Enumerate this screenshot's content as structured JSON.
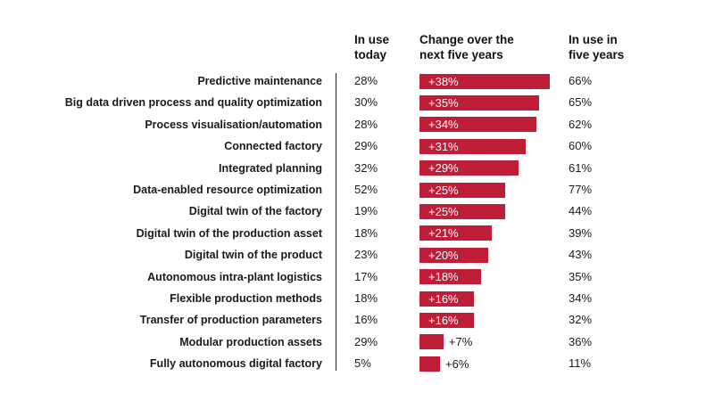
{
  "headers": {
    "today": "In use\ntoday",
    "change": "Change over the\nnext five years",
    "five_years": "In use in\nfive years"
  },
  "chart_data": {
    "type": "bar",
    "orientation": "horizontal",
    "bar_color": "#be1e37",
    "xlim": [
      0,
      38
    ],
    "rows": [
      {
        "label": "Predictive maintenance",
        "today": "28%",
        "change": 38,
        "change_label": "+38%",
        "five_years": "66%"
      },
      {
        "label": "Big data driven process and quality optimization",
        "today": "30%",
        "change": 35,
        "change_label": "+35%",
        "five_years": "65%"
      },
      {
        "label": "Process visualisation/automation",
        "today": "28%",
        "change": 34,
        "change_label": "+34%",
        "five_years": "62%"
      },
      {
        "label": "Connected factory",
        "today": "29%",
        "change": 31,
        "change_label": "+31%",
        "five_years": "60%"
      },
      {
        "label": "Integrated planning",
        "today": "32%",
        "change": 29,
        "change_label": "+29%",
        "five_years": "61%"
      },
      {
        "label": "Data-enabled resource optimization",
        "today": "52%",
        "change": 25,
        "change_label": "+25%",
        "five_years": "77%"
      },
      {
        "label": "Digital twin of the factory",
        "today": "19%",
        "change": 25,
        "change_label": "+25%",
        "five_years": "44%"
      },
      {
        "label": "Digital twin of the production asset",
        "today": "18%",
        "change": 21,
        "change_label": "+21%",
        "five_years": "39%"
      },
      {
        "label": "Digital twin of the product",
        "today": "23%",
        "change": 20,
        "change_label": "+20%",
        "five_years": "43%"
      },
      {
        "label": "Autonomous intra-plant logistics",
        "today": "17%",
        "change": 18,
        "change_label": "+18%",
        "five_years": "35%"
      },
      {
        "label": "Flexible production methods",
        "today": "18%",
        "change": 16,
        "change_label": "+16%",
        "five_years": "34%"
      },
      {
        "label": "Transfer of production parameters",
        "today": "16%",
        "change": 16,
        "change_label": "+16%",
        "five_years": "32%"
      },
      {
        "label": "Modular production assets",
        "today": "29%",
        "change": 7,
        "change_label": "+7%",
        "five_years": "36%"
      },
      {
        "label": "Fully autonomous digital factory",
        "today": "5%",
        "change": 6,
        "change_label": "+6%",
        "five_years": "11%"
      }
    ]
  }
}
